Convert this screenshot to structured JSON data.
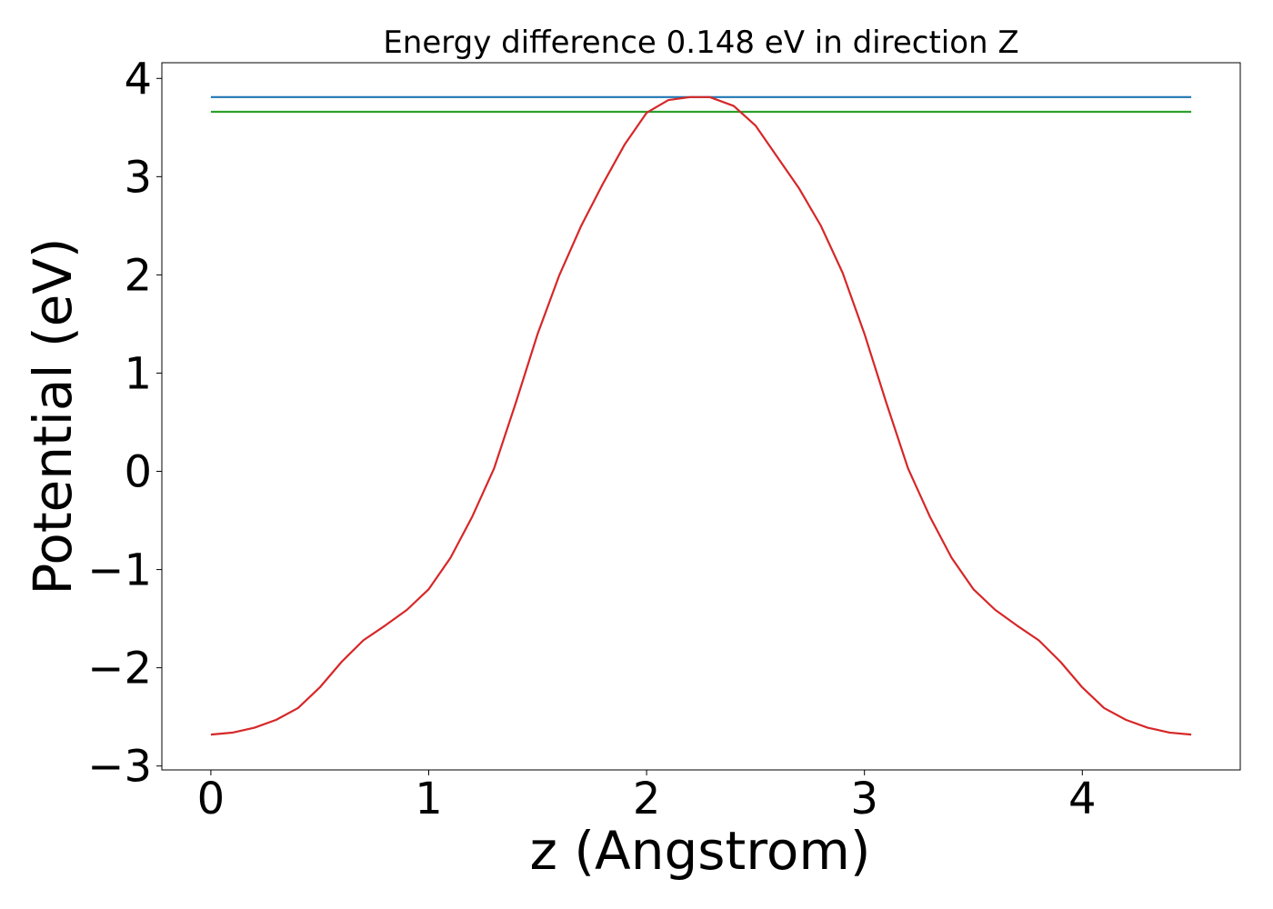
{
  "chart_data": {
    "type": "line",
    "title": "Energy difference 0.148 eV in direction Z",
    "xlabel": "z (Angstrom)",
    "ylabel": "Potential (eV)",
    "xlim": [
      -0.225,
      4.725
    ],
    "ylim": [
      -3.04,
      4.16
    ],
    "xticks": [
      0,
      1,
      2,
      3,
      4
    ],
    "yticks": [
      -3,
      -2,
      -1,
      0,
      1,
      2,
      3,
      4
    ],
    "xtick_labels": [
      "0",
      "1",
      "2",
      "3",
      "4"
    ],
    "ytick_labels": [
      "−3",
      "−2",
      "−1",
      "0",
      "1",
      "2",
      "3",
      "4"
    ],
    "grid": false,
    "legend": false,
    "series": [
      {
        "color": "#1f77b4",
        "x": [
          0,
          4.5
        ],
        "y": [
          3.81,
          3.81
        ]
      },
      {
        "color": "#2ca02c",
        "x": [
          0,
          4.5
        ],
        "y": [
          3.66,
          3.66
        ]
      },
      {
        "color": "#d62728",
        "x": [
          0,
          0.1,
          0.2,
          0.3,
          0.4,
          0.5,
          0.6,
          0.7,
          0.8,
          0.9,
          1.0,
          1.1,
          1.2,
          1.3,
          1.4,
          1.5,
          1.6,
          1.7,
          1.8,
          1.9,
          2.0,
          2.1,
          2.2,
          2.29,
          2.4,
          2.5,
          2.6,
          2.7,
          2.8,
          2.9,
          3.0,
          3.1,
          3.2,
          3.3,
          3.4,
          3.5,
          3.6,
          3.7,
          3.8,
          3.9,
          4.0,
          4.1,
          4.2,
          4.3,
          4.4,
          4.5
        ],
        "y": [
          -2.68,
          -2.66,
          -2.61,
          -2.53,
          -2.41,
          -2.2,
          -1.94,
          -1.72,
          -1.57,
          -1.41,
          -1.2,
          -0.88,
          -0.46,
          0.03,
          0.7,
          1.4,
          2.0,
          2.5,
          2.93,
          3.33,
          3.65,
          3.78,
          3.81,
          3.81,
          3.72,
          3.52,
          3.2,
          2.88,
          2.5,
          2.02,
          1.4,
          0.7,
          0.03,
          -0.46,
          -0.88,
          -1.2,
          -1.41,
          -1.57,
          -1.72,
          -1.94,
          -2.2,
          -2.41,
          -2.53,
          -2.61,
          -2.66,
          -2.68
        ]
      }
    ]
  }
}
